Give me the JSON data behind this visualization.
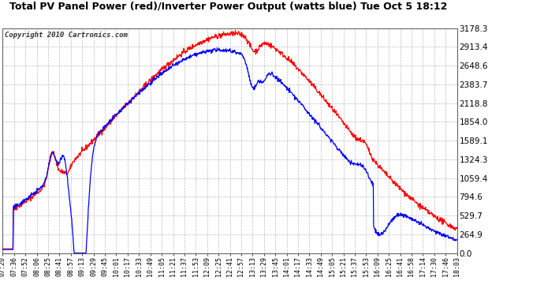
{
  "title": "Total PV Panel Power (red)/Inverter Power Output (watts blue) Tue Oct 5 18:12",
  "copyright_text": "Copyright 2010 Cartronics.com",
  "bg_color": "#ffffff",
  "plot_bg_color": "#ffffff",
  "grid_color": "#aaaaaa",
  "red_color": "#ff0000",
  "blue_color": "#0000ff",
  "title_color": "#000000",
  "tick_color": "#000000",
  "y_ticks": [
    0.0,
    264.9,
    529.7,
    794.6,
    1059.4,
    1324.3,
    1589.1,
    1854.0,
    2118.8,
    2383.7,
    2648.6,
    2913.4,
    3178.3
  ],
  "y_max": 3178.3,
  "x_tick_labels": [
    "07:20",
    "07:36",
    "07:52",
    "08:06",
    "08:25",
    "08:41",
    "08:57",
    "09:13",
    "09:29",
    "09:45",
    "10:01",
    "10:17",
    "10:33",
    "10:49",
    "11:05",
    "11:21",
    "11:37",
    "11:53",
    "12:09",
    "12:25",
    "12:41",
    "12:57",
    "13:13",
    "13:29",
    "13:45",
    "14:01",
    "14:17",
    "14:33",
    "14:49",
    "15:05",
    "15:21",
    "15:37",
    "15:53",
    "16:09",
    "16:25",
    "16:41",
    "16:58",
    "17:14",
    "17:30",
    "17:46",
    "18:03"
  ]
}
